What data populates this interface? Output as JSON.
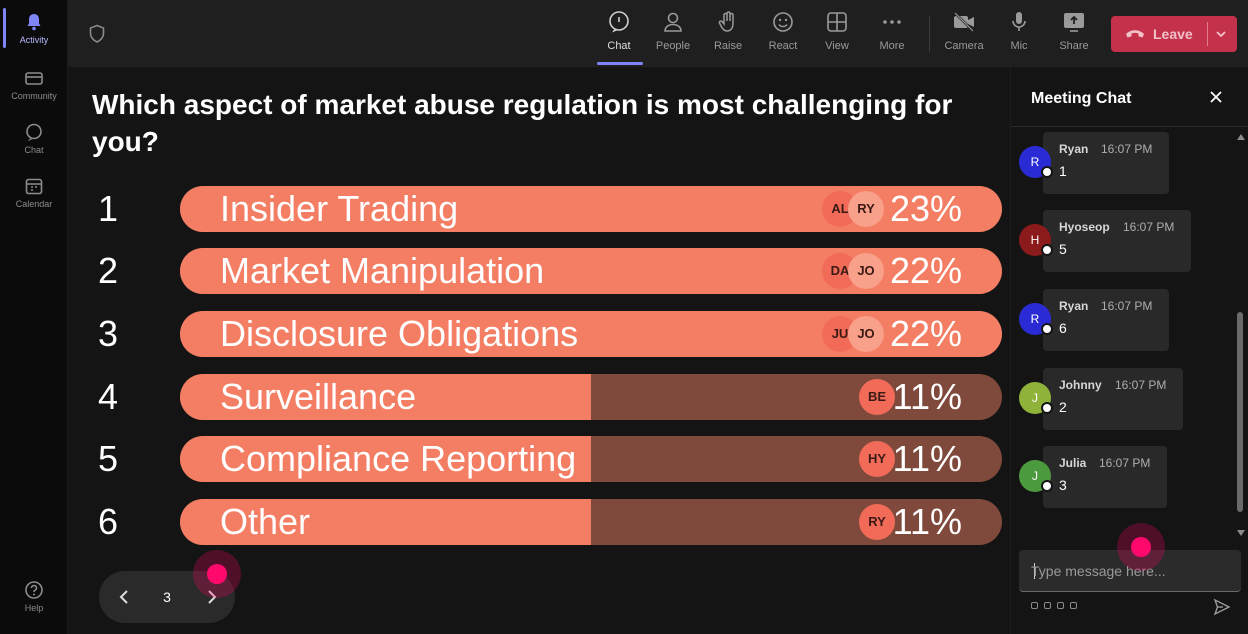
{
  "rail": {
    "items": [
      {
        "label": "Activity",
        "icon": "bell-icon"
      },
      {
        "label": "Community",
        "icon": "community-icon"
      },
      {
        "label": "Chat",
        "icon": "chat-icon"
      },
      {
        "label": "Calendar",
        "icon": "calendar-icon"
      },
      {
        "label": "Help",
        "icon": "help-icon"
      }
    ]
  },
  "toolbar": {
    "chat": "Chat",
    "people": "People",
    "raise": "Raise",
    "react": "React",
    "view": "View",
    "more": "More",
    "camera": "Camera",
    "mic": "Mic",
    "share": "Share",
    "leave": "Leave"
  },
  "poll": {
    "question": "Which aspect of market abuse regulation is most challenging for you?",
    "options": [
      {
        "num": "1",
        "label": "Insider Trading",
        "percent": "23%",
        "fill": 1.0,
        "avatars": [
          "AL",
          "RY"
        ]
      },
      {
        "num": "2",
        "label": "Market Manipulation",
        "percent": "22%",
        "fill": 1.0,
        "avatars": [
          "DA",
          "JO"
        ]
      },
      {
        "num": "3",
        "label": "Disclosure Obligations",
        "percent": "22%",
        "fill": 1.0,
        "avatars": [
          "JU",
          "JO"
        ]
      },
      {
        "num": "4",
        "label": "Surveillance",
        "percent": "11%",
        "fill": 0.5,
        "avatars": [
          "BE"
        ]
      },
      {
        "num": "5",
        "label": "Compliance Reporting",
        "percent": "11%",
        "fill": 0.5,
        "avatars": [
          "HY"
        ]
      },
      {
        "num": "6",
        "label": "Other",
        "percent": "11%",
        "fill": 0.5,
        "avatars": [
          "RY"
        ]
      }
    ]
  },
  "pager": {
    "current": "3"
  },
  "chat": {
    "title": "Meeting Chat",
    "messages": [
      {
        "initial": "R",
        "name": "Ryan",
        "time": "16:07 PM",
        "text": "1",
        "color": "#2b2bd6"
      },
      {
        "initial": "H",
        "name": "Hyoseop",
        "time": "16:07 PM",
        "text": "5",
        "color": "#8b1a1a"
      },
      {
        "initial": "R",
        "name": "Ryan",
        "time": "16:07 PM",
        "text": "6",
        "color": "#2b2bd6"
      },
      {
        "initial": "J",
        "name": "Johnny",
        "time": "16:07 PM",
        "text": "2",
        "color": "#8fb33a"
      },
      {
        "initial": "J",
        "name": "Julia",
        "time": "16:07 PM",
        "text": "3",
        "color": "#4c9a3e"
      }
    ],
    "placeholder": "Type message here..."
  },
  "colors": {
    "bar_fill": "#f47e63",
    "bar_track": "#7f4a3c",
    "leave": "#c4314b",
    "accent": "#7f85f5"
  }
}
